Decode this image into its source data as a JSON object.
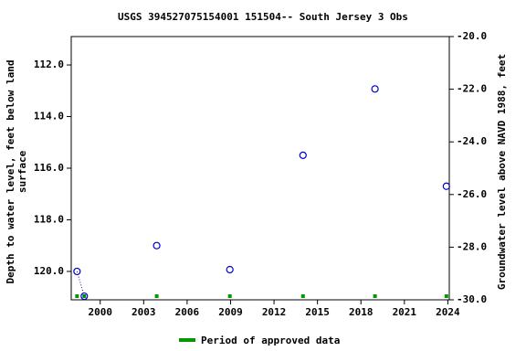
{
  "chart_data": {
    "type": "scatter",
    "title": "USGS 394527075154001 151504-- South Jersey 3 Obs",
    "y_label": [
      "Depth to water level, feet below land",
      "surface"
    ],
    "y2_label": "Groundwater level above NAVD 1988, feet",
    "xlim": [
      1998,
      2024.1
    ],
    "xticks": [
      2000,
      2003,
      2006,
      2009,
      2012,
      2015,
      2018,
      2021,
      2024
    ],
    "ylim": [
      110.9,
      121.1
    ],
    "yticks": [
      {
        "value": 112,
        "label": "112.0"
      },
      {
        "value": 114,
        "label": "114.0"
      },
      {
        "value": 116,
        "label": "116.0"
      },
      {
        "value": 118,
        "label": "118.0"
      },
      {
        "value": 120,
        "label": "120.0"
      }
    ],
    "y2lim": [
      -20,
      -30
    ],
    "y2ticks": [
      {
        "value": -20,
        "label": "-20.0"
      },
      {
        "value": -22,
        "label": "-22.0"
      },
      {
        "value": -24,
        "label": "-24.0"
      },
      {
        "value": -26,
        "label": "-26.0"
      },
      {
        "value": -28,
        "label": "-28.0"
      },
      {
        "value": -30,
        "label": "-30.0"
      }
    ],
    "series": [
      {
        "color": "#0000cc",
        "x": [
          1998.4,
          1998.9,
          2003.9,
          2008.95,
          2014.0,
          2018.97,
          2023.9
        ],
        "values": [
          120.0,
          120.96,
          119.0,
          119.93,
          115.5,
          112.93,
          116.7
        ]
      }
    ],
    "approved": {
      "name": "Period of approved data",
      "color": "#009900",
      "x": [
        1998.4,
        1998.9,
        2003.9,
        2008.95,
        2014.0,
        2018.97,
        2023.9
      ]
    }
  }
}
